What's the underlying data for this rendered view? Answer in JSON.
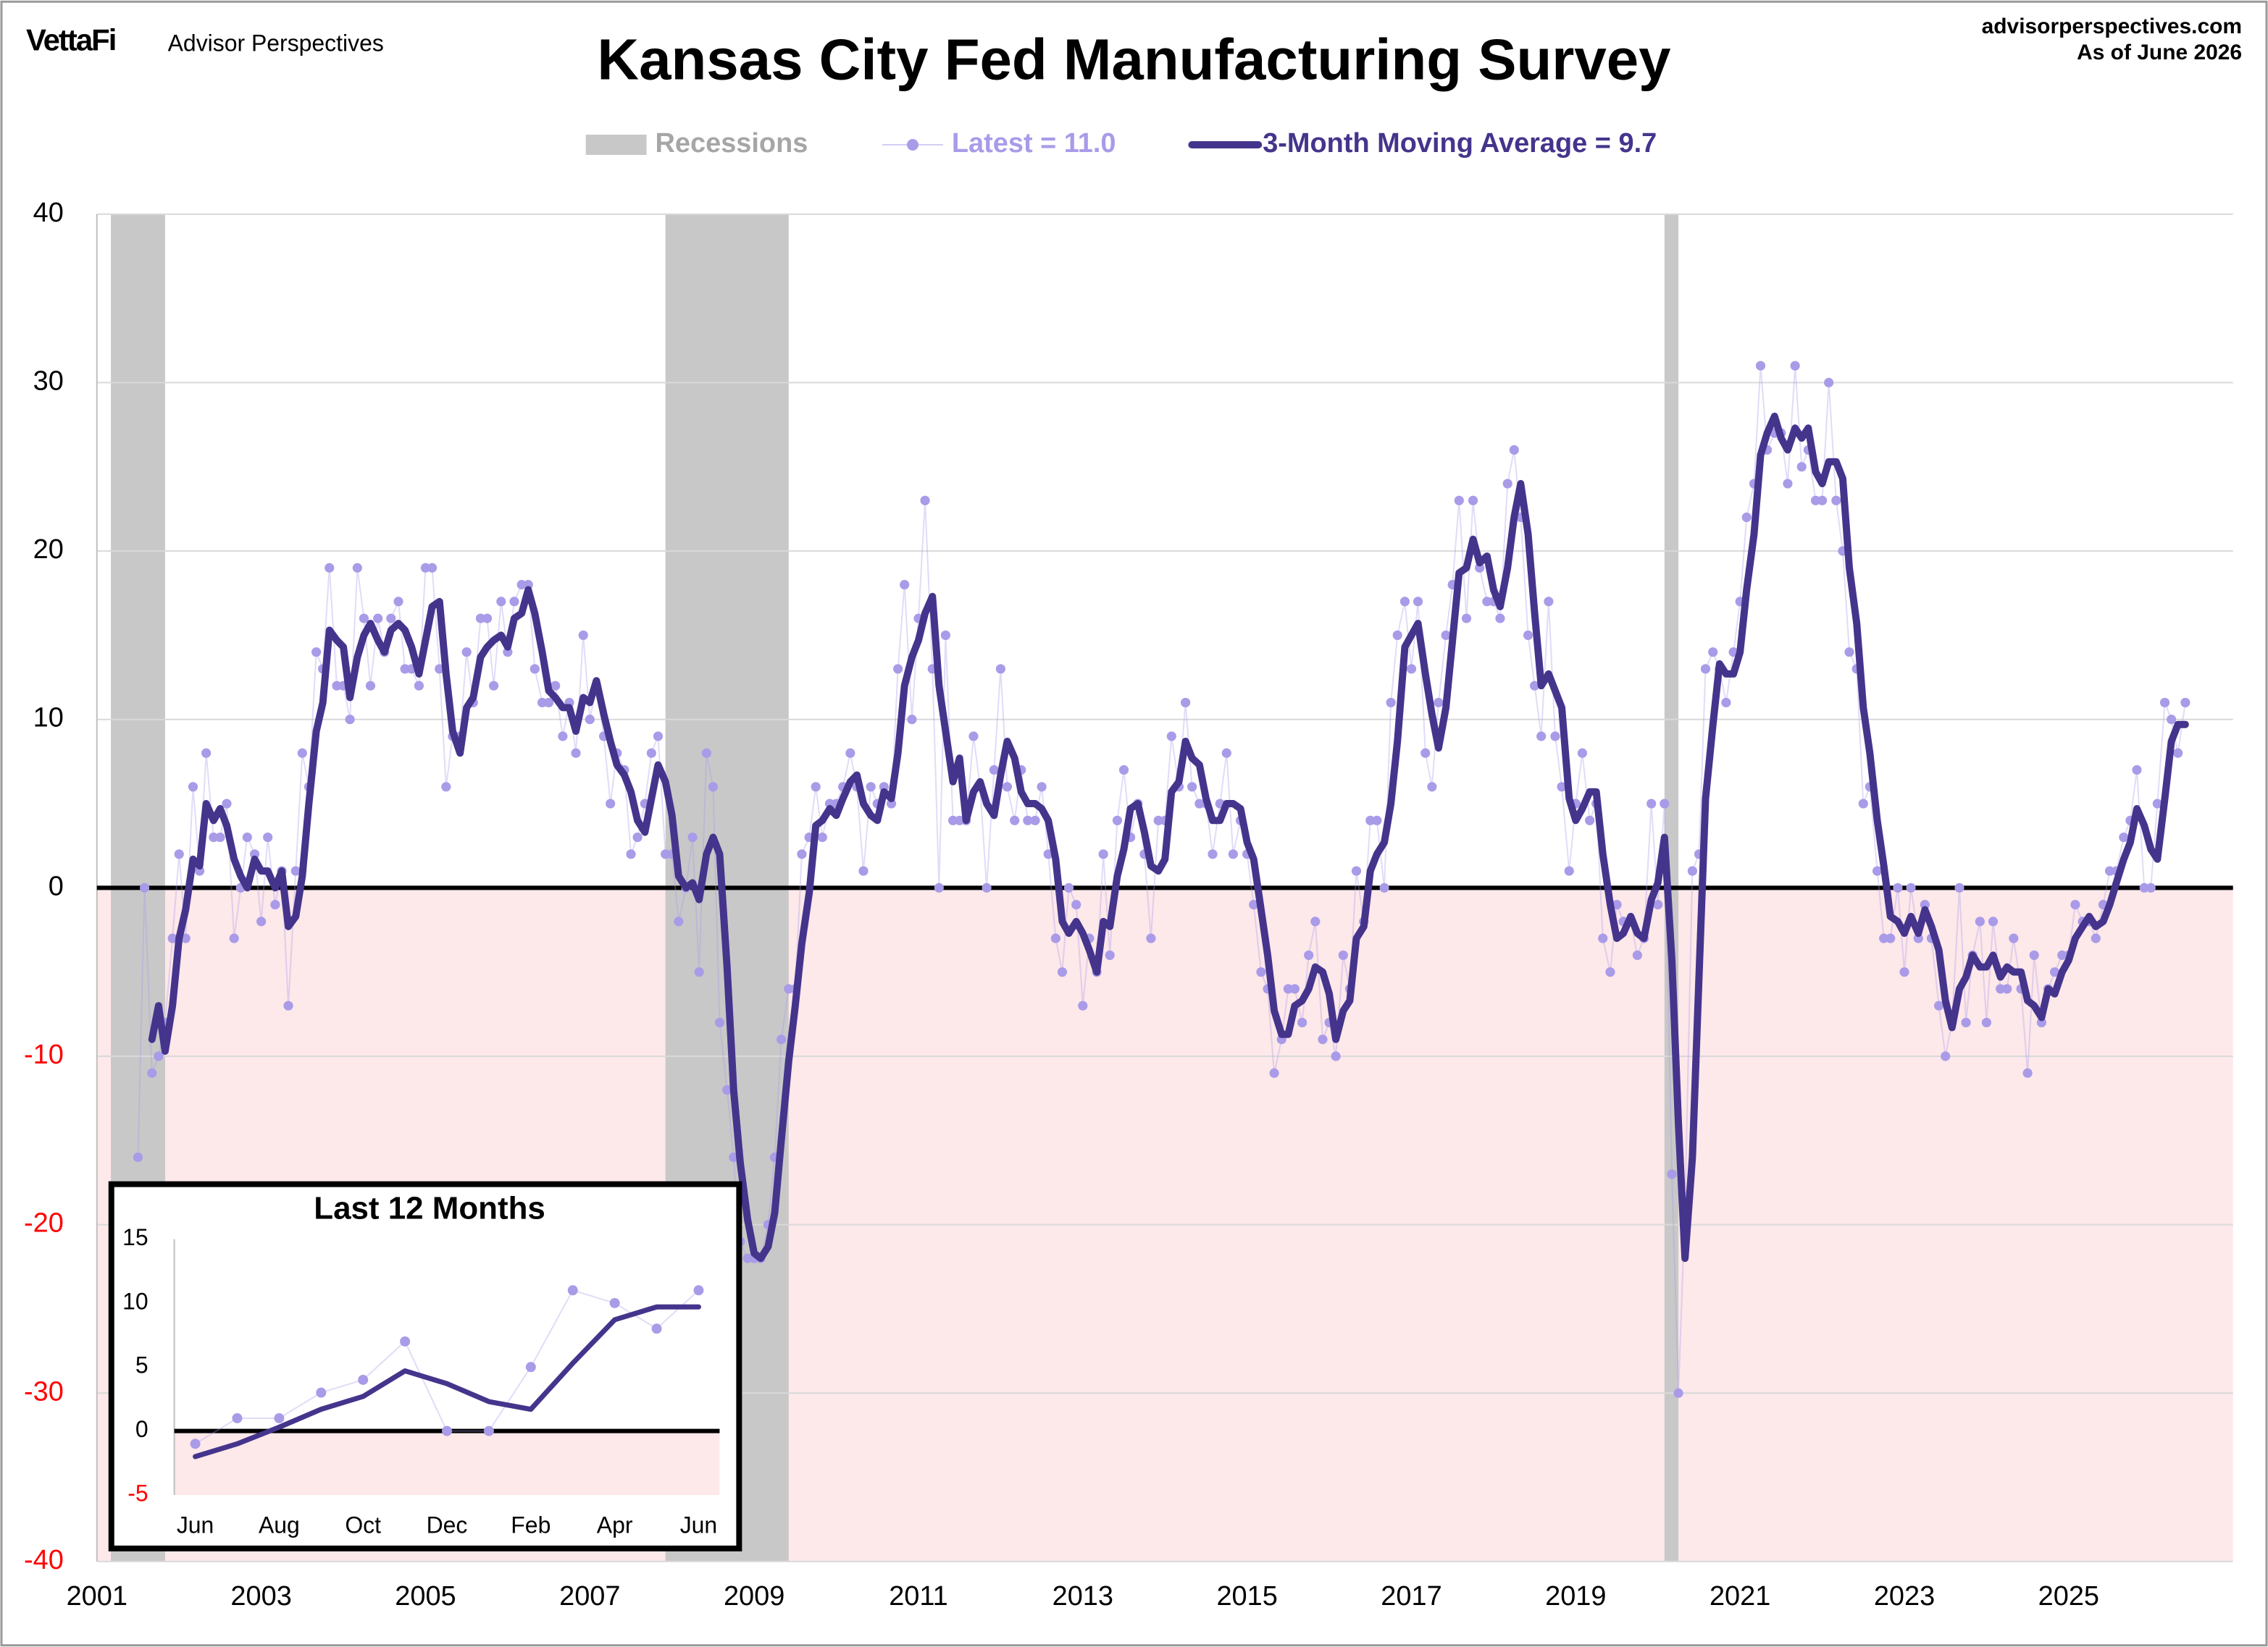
{
  "chart_data": [
    {
      "type": "line",
      "brand": "VettaFi",
      "brand_sub": "Advisor Perspectives",
      "title": "Kansas City Fed Manufacturing Survey",
      "source": "advisorperspectives.com",
      "date_note": "As of June 2026",
      "legend": "top",
      "grid": true,
      "zero_line": true,
      "negative_fill": "#fde8ea",
      "negative_tick_color": "#ff0000",
      "recessions": {
        "name": "Recessions",
        "color": "#c8c8c8",
        "periods": [
          [
            2001.17,
            2001.83
          ],
          [
            2007.92,
            2009.42
          ],
          [
            2020.08,
            2020.25
          ]
        ]
      },
      "xlim": [
        2001,
        2027
      ],
      "xticks": [
        2001,
        2003,
        2005,
        2007,
        2009,
        2011,
        2013,
        2015,
        2017,
        2019,
        2021,
        2023,
        2025
      ],
      "ylim": [
        -40,
        40
      ],
      "yticks": [
        40,
        30,
        20,
        10,
        0,
        -10,
        -20,
        -30,
        -40
      ],
      "x": [
        2001.5,
        2001.58,
        2001.67,
        2001.75,
        2001.83,
        2001.92,
        2002,
        2002.08,
        2002.17,
        2002.25,
        2002.33,
        2002.42,
        2002.5,
        2002.58,
        2002.67,
        2002.75,
        2002.83,
        2002.92,
        2003,
        2003.08,
        2003.17,
        2003.25,
        2003.33,
        2003.42,
        2003.5,
        2003.58,
        2003.67,
        2003.75,
        2003.83,
        2003.92,
        2004,
        2004.08,
        2004.17,
        2004.25,
        2004.33,
        2004.42,
        2004.5,
        2004.58,
        2004.67,
        2004.75,
        2004.83,
        2004.92,
        2005,
        2005.08,
        2005.17,
        2005.25,
        2005.33,
        2005.42,
        2005.5,
        2005.58,
        2005.67,
        2005.75,
        2005.83,
        2005.92,
        2006,
        2006.08,
        2006.17,
        2006.25,
        2006.33,
        2006.42,
        2006.5,
        2006.58,
        2006.67,
        2006.75,
        2006.83,
        2006.92,
        2007,
        2007.08,
        2007.17,
        2007.25,
        2007.33,
        2007.42,
        2007.5,
        2007.58,
        2007.67,
        2007.75,
        2007.83,
        2007.92,
        2008,
        2008.08,
        2008.17,
        2008.25,
        2008.33,
        2008.42,
        2008.5,
        2008.58,
        2008.67,
        2008.75,
        2008.83,
        2008.92,
        2009,
        2009.08,
        2009.17,
        2009.25,
        2009.33,
        2009.42,
        2009.5,
        2009.58,
        2009.67,
        2009.75,
        2009.83,
        2009.92,
        2010,
        2010.08,
        2010.17,
        2010.25,
        2010.33,
        2010.42,
        2010.5,
        2010.58,
        2010.67,
        2010.75,
        2010.83,
        2010.92,
        2011,
        2011.08,
        2011.17,
        2011.25,
        2011.33,
        2011.42,
        2011.5,
        2011.58,
        2011.67,
        2011.75,
        2011.83,
        2011.92,
        2012,
        2012.08,
        2012.17,
        2012.25,
        2012.33,
        2012.42,
        2012.5,
        2012.58,
        2012.67,
        2012.75,
        2012.83,
        2012.92,
        2013,
        2013.08,
        2013.17,
        2013.25,
        2013.33,
        2013.42,
        2013.5,
        2013.58,
        2013.67,
        2013.75,
        2013.83,
        2013.92,
        2014,
        2014.08,
        2014.17,
        2014.25,
        2014.33,
        2014.42,
        2014.5,
        2014.58,
        2014.67,
        2014.75,
        2014.83,
        2014.92,
        2015,
        2015.08,
        2015.17,
        2015.25,
        2015.33,
        2015.42,
        2015.5,
        2015.58,
        2015.67,
        2015.75,
        2015.83,
        2015.92,
        2016,
        2016.08,
        2016.17,
        2016.25,
        2016.33,
        2016.42,
        2016.5,
        2016.58,
        2016.67,
        2016.75,
        2016.83,
        2016.92,
        2017,
        2017.08,
        2017.17,
        2017.25,
        2017.33,
        2017.42,
        2017.5,
        2017.58,
        2017.67,
        2017.75,
        2017.83,
        2017.92,
        2018,
        2018.08,
        2018.17,
        2018.25,
        2018.33,
        2018.42,
        2018.5,
        2018.58,
        2018.67,
        2018.75,
        2018.83,
        2018.92,
        2019,
        2019.08,
        2019.17,
        2019.25,
        2019.33,
        2019.42,
        2019.5,
        2019.58,
        2019.67,
        2019.75,
        2019.83,
        2019.92,
        2020,
        2020.08,
        2020.17,
        2020.25,
        2020.33,
        2020.42,
        2020.5,
        2020.58,
        2020.67,
        2020.75,
        2020.83,
        2020.92,
        2021,
        2021.08,
        2021.17,
        2021.25,
        2021.33,
        2021.42,
        2021.5,
        2021.58,
        2021.67,
        2021.75,
        2021.83,
        2021.92,
        2022,
        2022.08,
        2022.17,
        2022.25,
        2022.33,
        2022.42,
        2022.5,
        2022.58,
        2022.67,
        2022.75,
        2022.83,
        2022.92,
        2023,
        2023.08,
        2023.17,
        2023.25,
        2023.33,
        2023.42,
        2023.5,
        2023.58,
        2023.67,
        2023.75,
        2023.83,
        2023.92,
        2024,
        2024.08,
        2024.17,
        2024.25,
        2024.33,
        2024.42,
        2024.5,
        2024.58,
        2024.67,
        2024.75,
        2024.83,
        2024.92,
        2025,
        2025.08,
        2025.17,
        2025.25,
        2025.33,
        2025.42,
        2025.5,
        2025.58,
        2025.67,
        2025.75,
        2025.83,
        2025.92,
        2026,
        2026.08,
        2026.17,
        2026.25,
        2026.33,
        2026.42
      ],
      "series": [
        {
          "name": "Latest = 11.0",
          "color": "#a99be8",
          "marker": true,
          "values": [
            -16,
            0,
            -11,
            -10,
            -8,
            -3,
            2,
            -3,
            6,
            1,
            8,
            3,
            3,
            5,
            -3,
            0,
            3,
            2,
            -2,
            3,
            -1,
            1,
            -7,
            1,
            8,
            6,
            14,
            13,
            19,
            12,
            12,
            10,
            19,
            16,
            12,
            16,
            14,
            16,
            17,
            13,
            13,
            12,
            19,
            19,
            13,
            6,
            9,
            9,
            14,
            11,
            16,
            16,
            12,
            17,
            14,
            17,
            18,
            18,
            13,
            11,
            11,
            12,
            9,
            11,
            8,
            15,
            10,
            12,
            9,
            5,
            8,
            7,
            2,
            3,
            5,
            8,
            9,
            2,
            2,
            -2,
            0,
            3,
            -5,
            8,
            6,
            -8,
            -12,
            -16,
            -21,
            -22,
            -22,
            -22,
            -20,
            -16,
            -9,
            -6,
            -6,
            2,
            3,
            6,
            3,
            5,
            5,
            6,
            8,
            6,
            1,
            6,
            5,
            6,
            5,
            13,
            18,
            10,
            16,
            23,
            13,
            0,
            15,
            4,
            4,
            4,
            9,
            6,
            0,
            7,
            13,
            6,
            4,
            7,
            4,
            4,
            6,
            2,
            -3,
            -5,
            0,
            -1,
            -7,
            -3,
            -5,
            2,
            -4,
            4,
            7,
            3,
            5,
            2,
            -3,
            4,
            4,
            9,
            6,
            11,
            6,
            5,
            5,
            2,
            5,
            8,
            2,
            4,
            2,
            -1,
            -5,
            -6,
            -11,
            -9,
            -6,
            -6,
            -8,
            -4,
            -2,
            -9,
            -8,
            -10,
            -4,
            -6,
            1,
            -2,
            4,
            4,
            0,
            11,
            15,
            17,
            13,
            17,
            8,
            6,
            11,
            15,
            18,
            23,
            16,
            23,
            19,
            17,
            17,
            16,
            24,
            26,
            22,
            15,
            12,
            9,
            17,
            9,
            6,
            1,
            5,
            8,
            4,
            5,
            -3,
            -5,
            -1,
            -2,
            -2,
            -4,
            -3,
            5,
            -1,
            5,
            -17,
            -30,
            -19,
            1,
            2,
            13,
            14,
            13,
            11,
            14,
            17,
            22,
            24,
            31,
            26,
            27,
            27,
            24,
            31,
            25,
            26,
            23,
            23,
            30,
            23,
            20,
            14,
            13,
            5,
            6,
            1,
            -3,
            -3,
            0,
            -5,
            0,
            -3,
            -1,
            -3,
            -7,
            -10,
            -8,
            0,
            -8,
            -4,
            -2,
            -8,
            -2,
            -6,
            -6,
            -3,
            -6,
            -11,
            -4,
            -8,
            -6,
            -5,
            -4,
            -4,
            -1,
            -2,
            -2,
            -3,
            -1,
            1,
            1,
            3,
            4,
            7,
            0,
            0,
            5,
            11,
            10,
            8,
            11
          ]
        },
        {
          "name": "3-Month Moving Average = 9.7",
          "color": "#45348c",
          "values": [
            null,
            null,
            -9.0,
            -7.0,
            -9.7,
            -7.0,
            -3.0,
            -1.3,
            1.7,
            1.3,
            5.0,
            4.0,
            4.7,
            3.7,
            1.7,
            0.7,
            0.0,
            1.7,
            1.0,
            1.0,
            0.0,
            1.0,
            -2.3,
            -1.7,
            0.7,
            5.0,
            9.3,
            11.0,
            15.3,
            14.7,
            14.3,
            11.3,
            13.7,
            15.0,
            15.7,
            14.7,
            14.0,
            15.3,
            15.7,
            15.3,
            14.3,
            12.7,
            14.7,
            16.7,
            17.0,
            12.7,
            9.3,
            8.0,
            10.7,
            11.3,
            13.7,
            14.3,
            14.7,
            15.0,
            14.3,
            16.0,
            16.3,
            17.7,
            16.3,
            14.0,
            11.7,
            11.3,
            10.7,
            10.7,
            9.3,
            11.3,
            11.0,
            12.3,
            10.3,
            8.7,
            7.3,
            6.7,
            5.7,
            4.0,
            3.3,
            5.3,
            7.3,
            6.3,
            4.3,
            0.7,
            0.0,
            0.3,
            -0.7,
            2.0,
            3.0,
            2.0,
            -4.7,
            -12.0,
            -16.3,
            -19.7,
            -21.7,
            -22.0,
            -21.3,
            -19.3,
            -15.0,
            -10.3,
            -7.0,
            -3.3,
            -0.3,
            3.7,
            4.0,
            4.7,
            4.3,
            5.3,
            6.3,
            6.7,
            5.0,
            4.3,
            4.0,
            5.7,
            5.3,
            8.0,
            12.0,
            13.7,
            14.7,
            16.3,
            17.3,
            12.0,
            9.3,
            6.3,
            7.7,
            4.0,
            5.7,
            6.3,
            5.0,
            4.3,
            6.7,
            8.7,
            7.7,
            5.7,
            5.0,
            5.0,
            4.7,
            4.0,
            1.7,
            -2.0,
            -2.7,
            -2.0,
            -2.7,
            -3.7,
            -5.0,
            -2.0,
            -2.3,
            0.7,
            2.3,
            4.7,
            5.0,
            3.3,
            1.3,
            1.0,
            1.7,
            5.7,
            6.3,
            8.7,
            7.7,
            7.3,
            5.3,
            4.0,
            4.0,
            5.0,
            5.0,
            4.7,
            2.7,
            1.7,
            -1.3,
            -4.0,
            -7.3,
            -8.7,
            -8.7,
            -7.0,
            -6.7,
            -6.0,
            -4.7,
            -5.0,
            -6.3,
            -9.0,
            -7.3,
            -6.7,
            -3.0,
            -2.3,
            1.0,
            2.0,
            2.7,
            5.0,
            8.7,
            14.3,
            15.0,
            15.7,
            12.7,
            10.3,
            8.3,
            10.7,
            14.7,
            18.7,
            19.0,
            20.7,
            19.3,
            19.7,
            17.7,
            16.7,
            19.0,
            22.0,
            24.0,
            21.0,
            16.3,
            12.0,
            12.7,
            11.7,
            10.7,
            5.3,
            4.0,
            4.7,
            5.7,
            5.7,
            2.0,
            -1.0,
            -3.0,
            -2.7,
            -1.7,
            -2.7,
            -3.0,
            -0.7,
            0.3,
            3.0,
            -4.3,
            -14.0,
            -22.0,
            -16.0,
            -5.3,
            5.3,
            9.7,
            13.3,
            12.7,
            12.7,
            14.0,
            17.7,
            21.0,
            25.7,
            27.0,
            28.0,
            26.7,
            26.0,
            27.3,
            26.7,
            27.3,
            24.7,
            24.0,
            25.3,
            25.3,
            24.3,
            19.0,
            15.7,
            10.7,
            8.0,
            4.0,
            1.3,
            -1.7,
            -2.0,
            -2.7,
            -1.7,
            -2.7,
            -1.3,
            -2.3,
            -3.7,
            -6.7,
            -8.3,
            -6.0,
            -5.3,
            -4.0,
            -4.7,
            -4.7,
            -4.0,
            -5.3,
            -4.7,
            -5.0,
            -5.0,
            -6.7,
            -7.0,
            -7.7,
            -6.0,
            -6.3,
            -5.0,
            -4.3,
            -3.0,
            -2.3,
            -1.7,
            -2.3,
            -2.0,
            -1.0,
            0.3,
            1.7,
            2.7,
            4.7,
            3.7,
            2.3,
            1.7,
            5.3,
            8.7,
            9.7,
            9.7
          ]
        }
      ]
    },
    {
      "type": "line",
      "title": "Last 12 Months",
      "grid": false,
      "zero_line": true,
      "negative_fill": "#fde8ea",
      "negative_tick_color": "#ff0000",
      "categories": [
        "Jun",
        null,
        "Aug",
        null,
        "Oct",
        null,
        "Dec",
        null,
        "Feb",
        null,
        "Apr",
        null,
        "Jun"
      ],
      "ylim": [
        -5,
        15
      ],
      "yticks": [
        15,
        10,
        5,
        0,
        -5
      ],
      "series": [
        {
          "name": "Latest = 11.0",
          "color": "#a99be8",
          "marker": true,
          "values": [
            -1,
            1,
            1,
            3,
            4,
            7,
            0,
            0,
            5,
            11,
            10,
            8,
            11
          ]
        },
        {
          "name": "3-Month Moving Average = 9.7",
          "color": "#45348c",
          "values": [
            -2.0,
            -1.0,
            0.3,
            1.7,
            2.7,
            4.7,
            3.7,
            2.3,
            1.7,
            5.3,
            8.7,
            9.7,
            9.7
          ]
        }
      ]
    }
  ]
}
